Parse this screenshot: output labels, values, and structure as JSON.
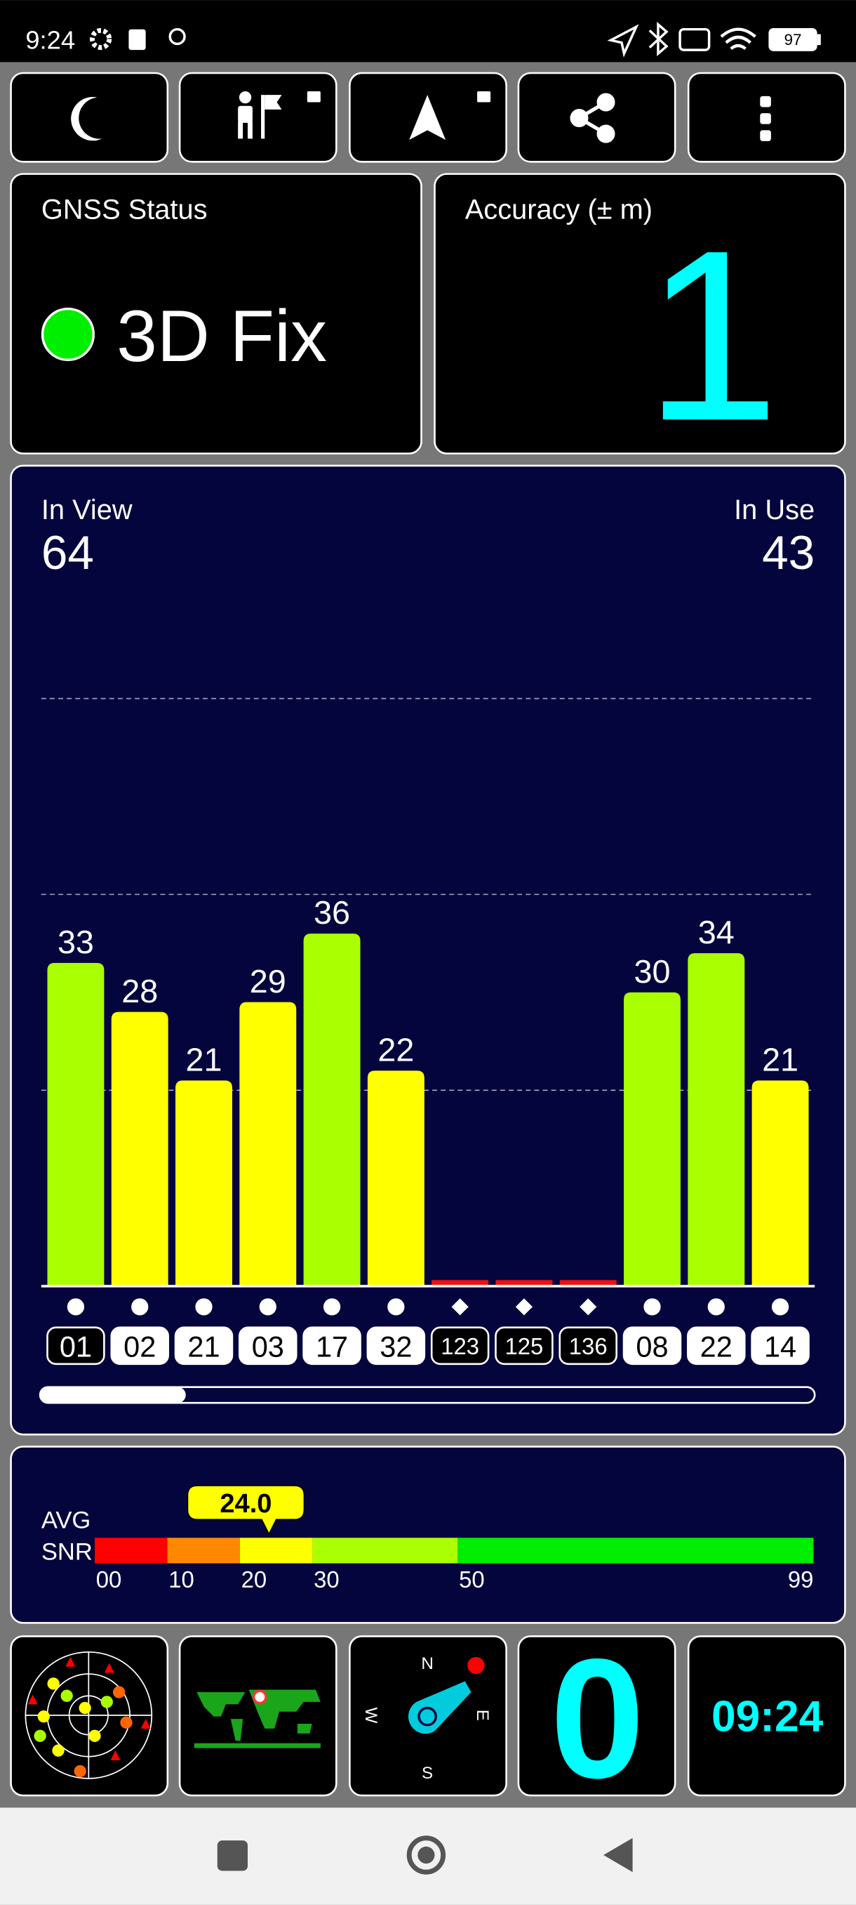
{
  "status_bar": {
    "time": "9:24",
    "battery": "97"
  },
  "gnss_status": {
    "title": "GNSS Status",
    "fix": "3D Fix"
  },
  "accuracy": {
    "title": "Accuracy (± m)",
    "value": 1
  },
  "satellites": {
    "in_view_label": "In View",
    "in_view": 64,
    "in_use_label": "In Use",
    "in_use": 43
  },
  "chart_data": {
    "type": "bar",
    "categories": [
      "01",
      "02",
      "21",
      "03",
      "17",
      "32",
      "123",
      "125",
      "136",
      "08",
      "22",
      "14"
    ],
    "values": [
      33,
      28,
      21,
      29,
      36,
      22,
      0,
      0,
      0,
      30,
      34,
      21
    ],
    "colors": [
      "#aaff00",
      "#ffff00",
      "#ffff00",
      "#ffff00",
      "#aaff00",
      "#ffff00",
      "#ee1111",
      "#ee1111",
      "#ee1111",
      "#aaff00",
      "#aaff00",
      "#ffff00"
    ],
    "in_use": [
      false,
      true,
      true,
      true,
      true,
      true,
      false,
      false,
      false,
      true,
      true,
      true
    ],
    "markers": [
      "circle",
      "circle",
      "circle",
      "circle",
      "circle",
      "circle",
      "diamond",
      "diamond",
      "diamond",
      "circle",
      "circle",
      "circle"
    ],
    "ylim": [
      0,
      70
    ],
    "grid_values": [
      20,
      40,
      60
    ]
  },
  "snr": {
    "label_1": "AVG",
    "label_2": "SNR",
    "average": {
      "value": 24,
      "label": "24.0"
    },
    "xlim": [
      0,
      99
    ],
    "xticks": [
      {
        "value": 0,
        "label": "00"
      },
      10,
      20,
      30,
      50,
      99
    ],
    "segments": [
      {
        "from": 0,
        "to": 10,
        "color": "#ff0000"
      },
      {
        "from": 10,
        "to": 20,
        "color": "#ff8800"
      },
      {
        "from": 20,
        "to": 30,
        "color": "#ffff00"
      },
      {
        "from": 30,
        "to": 50,
        "color": "#aaff00"
      },
      {
        "from": 50,
        "to": 99,
        "color": "#00ee00"
      }
    ]
  },
  "tiles": {
    "compass": {
      "n": "N",
      "e": "E",
      "s": "S",
      "w": "W"
    },
    "speed": 0,
    "clock": "09:24"
  }
}
